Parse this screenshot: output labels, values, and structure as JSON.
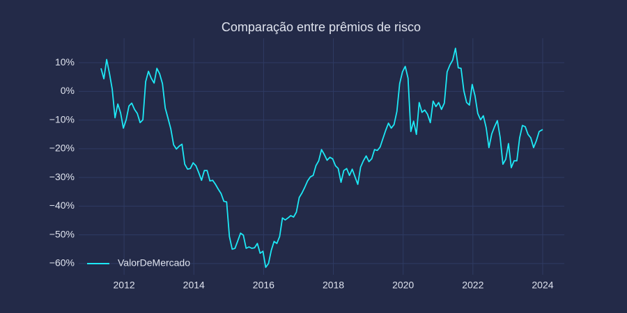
{
  "chart_data": {
    "type": "line",
    "title": "Comparação entre prêmios de risco",
    "x": [
      2011.34,
      2011.42,
      2011.5,
      2011.58,
      2011.66,
      2011.74,
      2011.82,
      2011.9,
      2011.98,
      2012.06,
      2012.14,
      2012.22,
      2012.3,
      2012.38,
      2012.46,
      2012.54,
      2012.62,
      2012.7,
      2012.78,
      2012.86,
      2012.94,
      2013.02,
      2013.1,
      2013.18,
      2013.26,
      2013.34,
      2013.42,
      2013.5,
      2013.58,
      2013.66,
      2013.74,
      2013.82,
      2013.9,
      2013.98,
      2014.06,
      2014.14,
      2014.22,
      2014.3,
      2014.38,
      2014.46,
      2014.54,
      2014.62,
      2014.7,
      2014.78,
      2014.86,
      2014.94,
      2015.02,
      2015.1,
      2015.18,
      2015.26,
      2015.34,
      2015.42,
      2015.5,
      2015.58,
      2015.66,
      2015.74,
      2015.82,
      2015.9,
      2015.98,
      2016.06,
      2016.14,
      2016.22,
      2016.3,
      2016.38,
      2016.46,
      2016.54,
      2016.62,
      2016.7,
      2016.78,
      2016.86,
      2016.94,
      2017.02,
      2017.1,
      2017.18,
      2017.26,
      2017.34,
      2017.42,
      2017.5,
      2017.58,
      2017.66,
      2017.74,
      2017.82,
      2017.9,
      2017.98,
      2018.06,
      2018.14,
      2018.22,
      2018.3,
      2018.38,
      2018.46,
      2018.54,
      2018.62,
      2018.7,
      2018.78,
      2018.86,
      2018.94,
      2019.02,
      2019.1,
      2019.18,
      2019.26,
      2019.34,
      2019.42,
      2019.5,
      2019.58,
      2019.66,
      2019.74,
      2019.82,
      2019.9,
      2019.98,
      2020.06,
      2020.14,
      2020.22,
      2020.3,
      2020.38,
      2020.46,
      2020.54,
      2020.62,
      2020.7,
      2020.78,
      2020.86,
      2020.94,
      2021.02,
      2021.1,
      2021.18,
      2021.26,
      2021.34,
      2021.42,
      2021.5,
      2021.58,
      2021.66,
      2021.74,
      2021.82,
      2021.9,
      2021.98,
      2022.06,
      2022.14,
      2022.22,
      2022.3,
      2022.38,
      2022.46,
      2022.54,
      2022.62,
      2022.7,
      2022.78,
      2022.86,
      2022.94,
      2023.02,
      2023.1,
      2023.18,
      2023.26,
      2023.34,
      2023.42,
      2023.5,
      2023.58,
      2023.66,
      2023.74,
      2023.82,
      2023.9,
      2024.0
    ],
    "series": [
      {
        "name": "ValorDeMercado",
        "color": "#1de9f6",
        "values": [
          8.0,
          4.4,
          11.1,
          6.3,
          0.7,
          -9.2,
          -4.4,
          -7.5,
          -12.8,
          -9.9,
          -5.1,
          -4.1,
          -6.3,
          -7.7,
          -10.9,
          -9.9,
          3.4,
          7.0,
          4.6,
          2.9,
          8.0,
          6.1,
          2.7,
          -5.8,
          -9.4,
          -13.1,
          -18.6,
          -20.1,
          -19.1,
          -18.4,
          -25.4,
          -27.1,
          -26.9,
          -24.9,
          -25.9,
          -28.3,
          -31.0,
          -27.6,
          -27.6,
          -31.2,
          -31.0,
          -32.4,
          -34.1,
          -35.6,
          -38.3,
          -38.5,
          -50.6,
          -55.0,
          -54.7,
          -52.1,
          -49.4,
          -50.1,
          -54.7,
          -54.2,
          -54.7,
          -54.5,
          -53.0,
          -56.4,
          -55.7,
          -61.3,
          -60.0,
          -55.4,
          -52.3,
          -53.0,
          -50.6,
          -44.1,
          -44.8,
          -44.1,
          -43.3,
          -43.8,
          -42.1,
          -37.0,
          -35.4,
          -33.4,
          -31.2,
          -29.8,
          -29.3,
          -25.9,
          -24.2,
          -20.3,
          -22.0,
          -24.0,
          -23.0,
          -23.5,
          -25.9,
          -26.9,
          -31.7,
          -27.6,
          -26.9,
          -29.3,
          -27.1,
          -29.8,
          -32.4,
          -26.4,
          -24.2,
          -22.5,
          -24.5,
          -23.5,
          -20.3,
          -20.6,
          -19.4,
          -16.5,
          -13.6,
          -11.1,
          -12.8,
          -11.6,
          -7.0,
          2.7,
          6.8,
          8.7,
          4.6,
          -14.0,
          -10.4,
          -15.0,
          -3.9,
          -7.3,
          -6.5,
          -8.0,
          -10.9,
          -3.4,
          -5.3,
          -3.9,
          -6.3,
          -4.1,
          6.8,
          9.2,
          10.9,
          15.0,
          8.2,
          8.0,
          0.2,
          -3.9,
          -4.8,
          2.4,
          -1.5,
          -7.7,
          -9.9,
          -8.5,
          -12.6,
          -19.6,
          -14.8,
          -12.3,
          -10.2,
          -16.0,
          -25.4,
          -23.7,
          -18.2,
          -26.6,
          -24.2,
          -24.2,
          -16.2,
          -11.9,
          -12.3,
          -15.0,
          -16.2,
          -19.6,
          -17.2,
          -14.0,
          -13.3
        ]
      }
    ],
    "xlim": [
      2010.7,
      2024.62
    ],
    "xticks": [
      2012,
      2014,
      2016,
      2018,
      2020,
      2022,
      2024
    ],
    "ylim": [
      -63.9,
      18.5
    ],
    "yticks": [
      {
        "value": 10,
        "label": "10%"
      },
      {
        "value": 0,
        "label": "0%"
      },
      {
        "value": -10,
        "label": "−10%"
      },
      {
        "value": -20,
        "label": "−20%"
      },
      {
        "value": -30,
        "label": "−30%"
      },
      {
        "value": -40,
        "label": "−40%"
      },
      {
        "value": -50,
        "label": "−50%"
      },
      {
        "value": -60,
        "label": "−60%"
      }
    ],
    "grid": true,
    "legend": "lower left"
  }
}
